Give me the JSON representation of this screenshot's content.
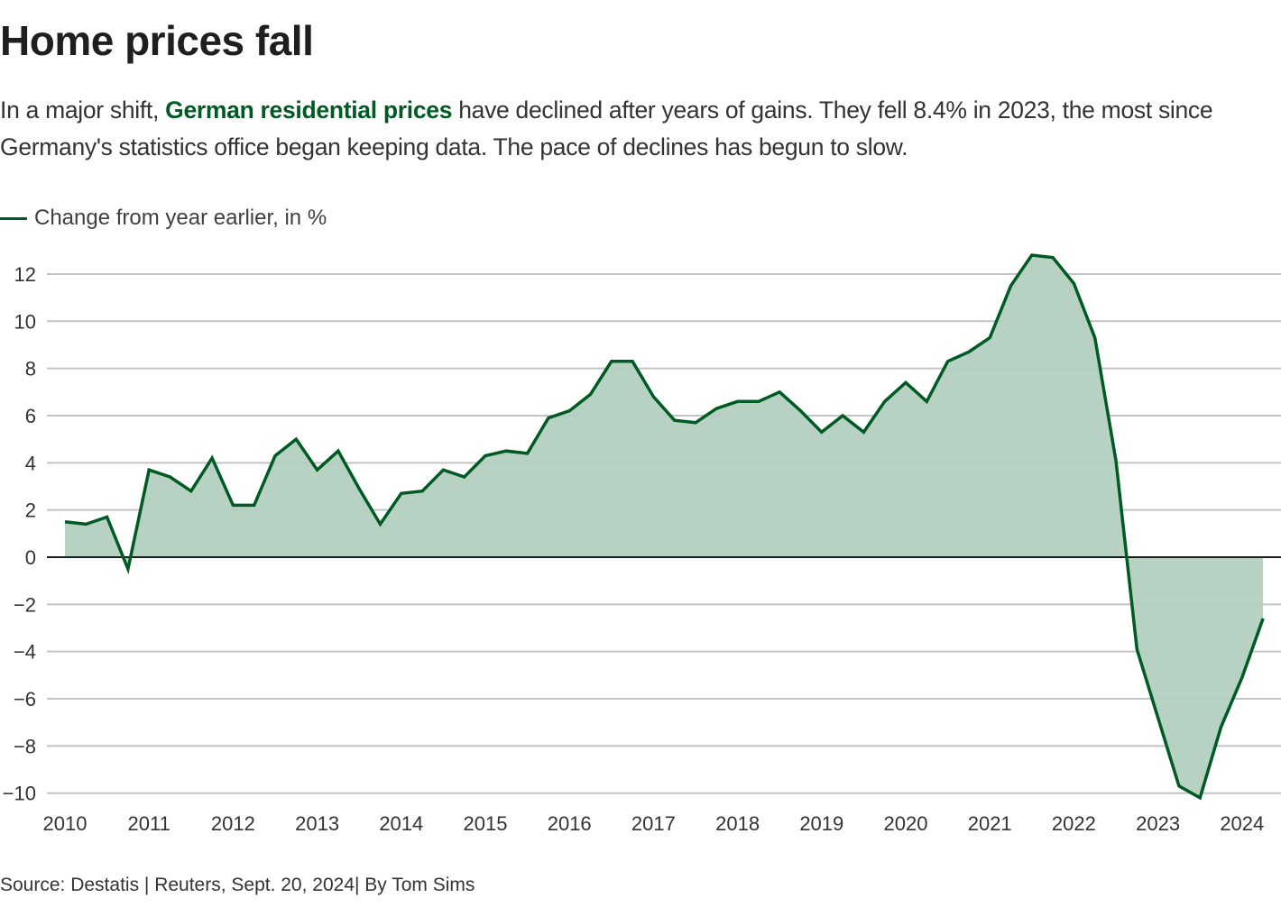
{
  "header": {
    "title": "Home prices fall",
    "subtitle_pre": "In a major shift, ",
    "subtitle_highlight": "German residential prices",
    "subtitle_post": " have declined after years of gains. They fell 8.4% in 2023, the most since Germany's statistics office began keeping data. The pace of declines has begun to slow."
  },
  "footer": {
    "source": "Source: Destatis | Reuters, Sept. 20, 2024| By Tom Sims"
  },
  "colors": {
    "line": "#005a24",
    "area": "#b3d0bf",
    "grid": "#c4c4c4",
    "zero": "#1a1a1a"
  },
  "chart_data": {
    "type": "area",
    "title": "Home prices fall",
    "xlabel": "",
    "ylabel": "",
    "legend": [
      {
        "name": "Change from year earlier, in %",
        "position": "top-left"
      }
    ],
    "x_ticks": [
      "2010",
      "2011",
      "2012",
      "2013",
      "2014",
      "2015",
      "2016",
      "2017",
      "2018",
      "2019",
      "2020",
      "2021",
      "2022",
      "2023",
      "2024"
    ],
    "y_ticks": [
      12,
      10,
      8,
      6,
      4,
      2,
      0,
      -2,
      -4,
      -6,
      -8,
      -10
    ],
    "y_tick_labels": [
      "12",
      "10",
      "8",
      "6",
      "4",
      "2",
      "0",
      "−2",
      "−4",
      "−6",
      "−8",
      "−10"
    ],
    "ylim": [
      -10,
      12
    ],
    "grid": true,
    "frequency": "quarterly",
    "start": "2010 Q1",
    "series": [
      {
        "name": "Change from year earlier, in %",
        "values": [
          1.5,
          1.4,
          1.7,
          -0.5,
          3.7,
          3.4,
          2.8,
          4.2,
          2.2,
          2.2,
          4.3,
          5.0,
          3.7,
          4.5,
          2.9,
          1.4,
          2.7,
          2.8,
          3.7,
          3.4,
          4.3,
          4.5,
          4.4,
          5.9,
          6.2,
          6.9,
          8.3,
          8.3,
          6.8,
          5.8,
          5.7,
          6.3,
          6.6,
          6.6,
          7.0,
          6.2,
          5.3,
          6.0,
          5.3,
          6.6,
          7.4,
          6.6,
          8.3,
          8.7,
          9.3,
          11.5,
          12.8,
          12.7,
          11.6,
          9.3,
          4.1,
          -3.9,
          -6.8,
          -9.7,
          -10.2,
          -7.2,
          -5.1,
          -2.6
        ]
      }
    ]
  }
}
